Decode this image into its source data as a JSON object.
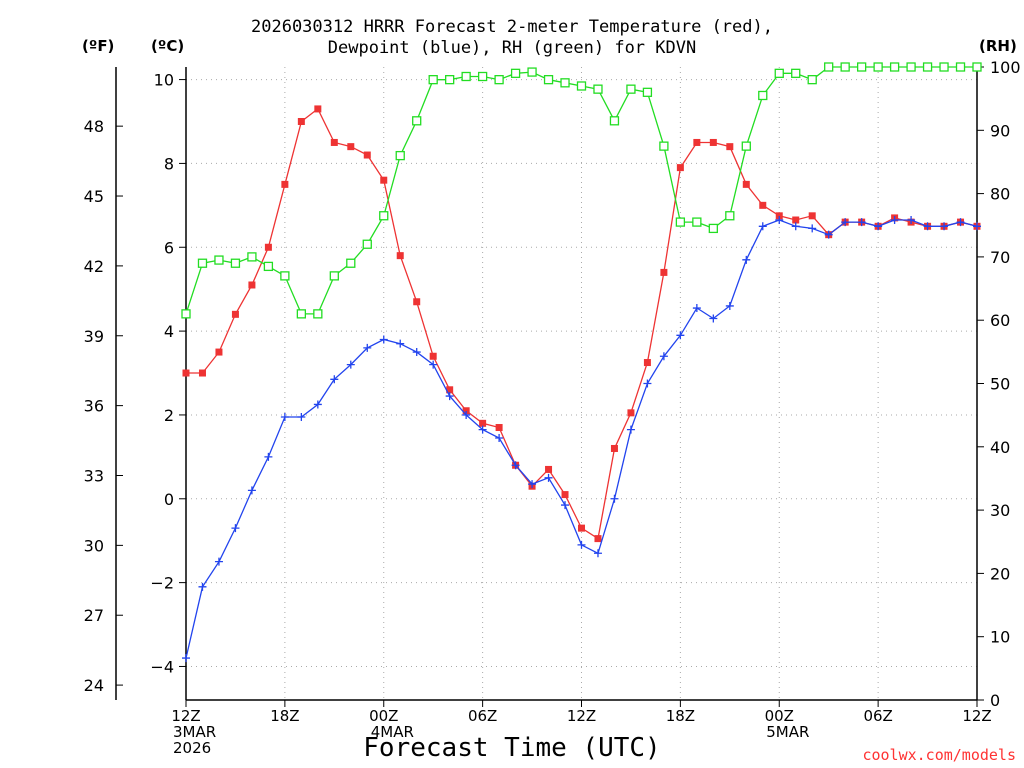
{
  "chart_data": {
    "type": "line",
    "title_line1": "2026030312 HRRR Forecast 2-meter Temperature (red),",
    "title_line2": "Dewpoint (blue), RH (green) for KDVN",
    "left_outer_unit": "(ºF)",
    "left_inner_unit": "(ºC)",
    "right_unit": "(RH)",
    "xlabel": "Forecast Time (UTC)",
    "credit": "coolwx.com/models",
    "x_start_hour": 0,
    "x_end_hour": 48,
    "x_ticks": [
      {
        "hour": 0,
        "lines": [
          "12Z",
          "3MAR",
          "2026"
        ]
      },
      {
        "hour": 6,
        "lines": [
          "18Z"
        ]
      },
      {
        "hour": 12,
        "lines": [
          "00Z",
          "4MAR"
        ]
      },
      {
        "hour": 18,
        "lines": [
          "06Z"
        ]
      },
      {
        "hour": 24,
        "lines": [
          "12Z"
        ]
      },
      {
        "hour": 30,
        "lines": [
          "18Z"
        ]
      },
      {
        "hour": 36,
        "lines": [
          "00Z",
          "5MAR"
        ]
      },
      {
        "hour": 42,
        "lines": [
          "06Z"
        ]
      },
      {
        "hour": 48,
        "lines": [
          "12Z"
        ]
      }
    ],
    "c_axis": {
      "range": [
        -4.8,
        10.3
      ],
      "ticks": [
        -4,
        -2,
        0,
        2,
        4,
        6,
        8,
        10
      ]
    },
    "f_axis": {
      "ticks": [
        24,
        27,
        30,
        33,
        36,
        39,
        42,
        45,
        48
      ]
    },
    "rh_axis": {
      "range": [
        0,
        100
      ],
      "ticks": [
        0,
        10,
        20,
        30,
        40,
        50,
        60,
        70,
        80,
        90,
        100
      ]
    },
    "grid": true,
    "series": [
      {
        "name": "Temperature",
        "color": "#ee3333",
        "marker": "filled-square",
        "axis": "c",
        "values": [
          3.0,
          3.0,
          3.5,
          4.4,
          5.1,
          6.0,
          7.5,
          9.0,
          9.3,
          8.5,
          8.4,
          8.2,
          7.6,
          5.8,
          4.7,
          3.4,
          2.6,
          2.1,
          1.8,
          1.7,
          0.8,
          0.3,
          0.7,
          0.1,
          -0.7,
          -0.95,
          1.2,
          2.05,
          3.25,
          5.4,
          7.9,
          8.5,
          8.5,
          8.4,
          7.5,
          7.0,
          6.75,
          6.65,
          6.75,
          6.3,
          6.6,
          6.6,
          6.5,
          6.7,
          6.6,
          6.5,
          6.5,
          6.6,
          6.5
        ]
      },
      {
        "name": "Dewpoint",
        "color": "#2244ee",
        "marker": "plus",
        "axis": "c",
        "values": [
          -3.8,
          -2.1,
          -1.5,
          -0.7,
          0.2,
          1.0,
          1.95,
          1.95,
          2.25,
          2.85,
          3.2,
          3.6,
          3.8,
          3.7,
          3.5,
          3.2,
          2.45,
          2.0,
          1.65,
          1.45,
          0.8,
          0.35,
          0.5,
          -0.15,
          -1.1,
          -1.3,
          0.0,
          1.65,
          2.75,
          3.4,
          3.9,
          4.55,
          4.3,
          4.6,
          5.7,
          6.5,
          6.65,
          6.5,
          6.45,
          6.3,
          6.6,
          6.6,
          6.5,
          6.65,
          6.65,
          6.5,
          6.5,
          6.6,
          6.5
        ]
      },
      {
        "name": "RH",
        "color": "#22dd22",
        "marker": "open-square",
        "axis": "rh",
        "values": [
          61,
          69,
          69.5,
          69,
          70,
          68.5,
          67,
          61,
          61,
          67,
          69,
          72,
          76.5,
          86,
          91.5,
          98,
          98,
          98.5,
          98.5,
          98,
          99,
          99.2,
          98,
          97.5,
          97,
          96.5,
          91.5,
          96.5,
          96,
          87.5,
          75.5,
          75.5,
          74.5,
          76.5,
          87.5,
          95.5,
          99,
          99,
          98,
          100,
          100,
          100,
          100,
          100,
          100,
          100,
          100,
          100,
          100
        ]
      }
    ]
  }
}
